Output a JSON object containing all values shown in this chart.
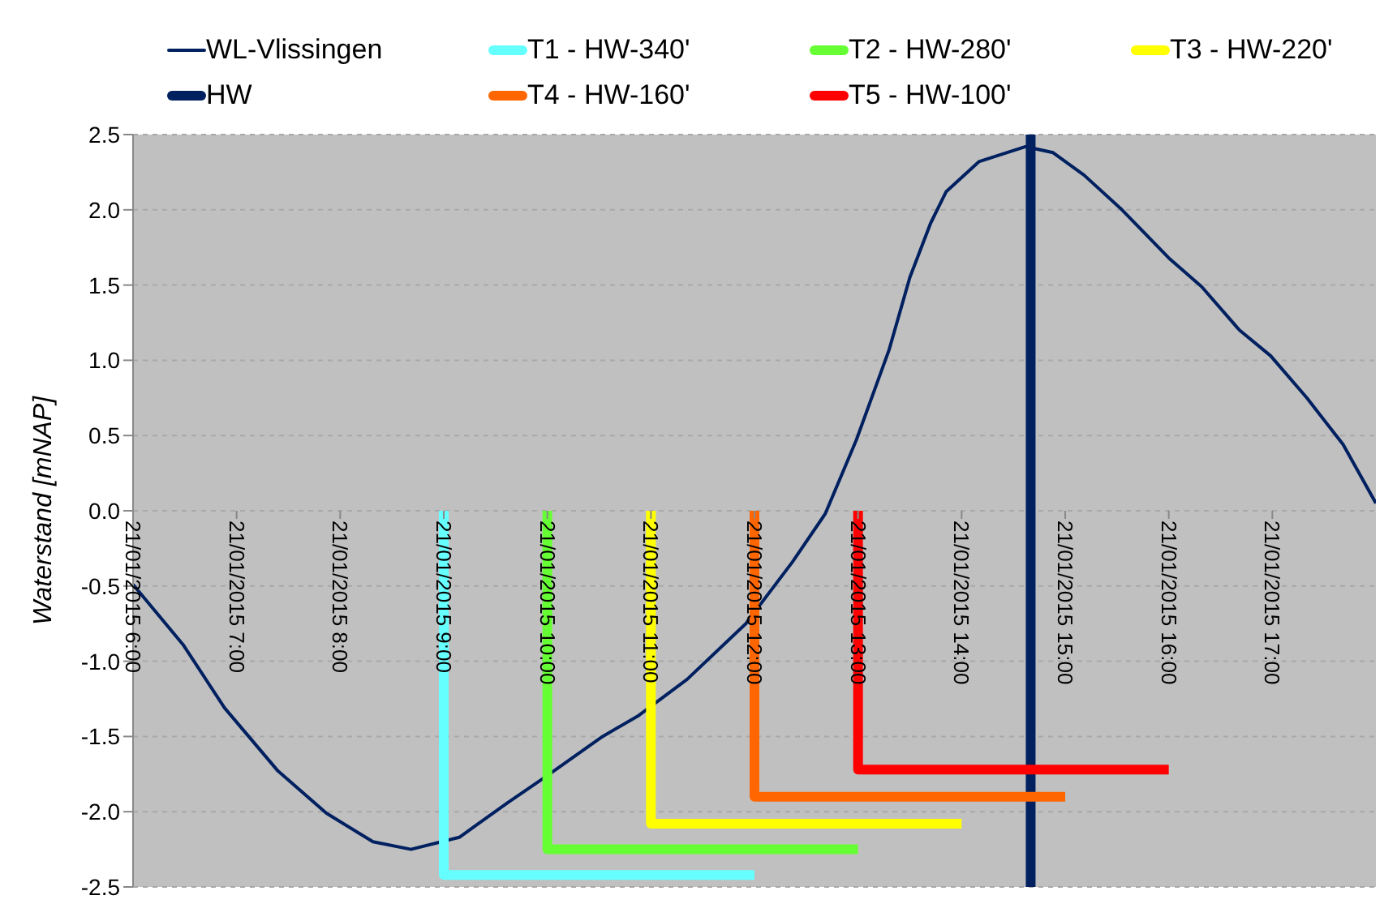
{
  "chart_data": {
    "type": "line",
    "ylabel": "Waterstand [mNAP]",
    "xlim": [
      "2015-01-21T06:00",
      "2015-01-21T18:00"
    ],
    "ylim": [
      -2.5,
      2.5
    ],
    "xticks": [
      {
        "value": "2015-01-21T06:00",
        "label": "21/01/2015 6:00"
      },
      {
        "value": "2015-01-21T07:00",
        "label": "21/01/2015 7:00"
      },
      {
        "value": "2015-01-21T08:00",
        "label": "21/01/2015 8:00"
      },
      {
        "value": "2015-01-21T09:00",
        "label": "21/01/2015 9:00"
      },
      {
        "value": "2015-01-21T10:00",
        "label": "21/01/2015 10:00"
      },
      {
        "value": "2015-01-21T11:00",
        "label": "21/01/2015 11:00"
      },
      {
        "value": "2015-01-21T12:00",
        "label": "21/01/2015 12:00"
      },
      {
        "value": "2015-01-21T13:00",
        "label": "21/01/2015 13:00"
      },
      {
        "value": "2015-01-21T14:00",
        "label": "21/01/2015 14:00"
      },
      {
        "value": "2015-01-21T15:00",
        "label": "21/01/2015 15:00"
      },
      {
        "value": "2015-01-21T16:00",
        "label": "21/01/2015 16:00"
      },
      {
        "value": "2015-01-21T17:00",
        "label": "21/01/2015 17:00"
      }
    ],
    "yticks": [
      -2.5,
      {
        "value": -2,
        "label": "-2.0"
      },
      -1.5,
      {
        "value": -1,
        "label": "-1.0"
      },
      -0.5,
      {
        "value": 0,
        "label": "0.0"
      },
      0.5,
      {
        "value": 1,
        "label": "1.0"
      },
      1.5,
      {
        "value": 2,
        "label": "2.0"
      },
      2.5
    ],
    "grid": "y",
    "legend": "top",
    "marker": "none",
    "series": [
      {
        "name": "WL-Vlissingen",
        "color": "#002060",
        "x": [
          "2015-01-21T06:00",
          "2015-01-21T06:29",
          "2015-01-21T06:53",
          "2015-01-21T07:24",
          "2015-01-21T07:52",
          "2015-01-21T08:19",
          "2015-01-21T08:41",
          "2015-01-21T09:09",
          "2015-01-21T09:37",
          "2015-01-21T10:00",
          "2015-01-21T10:32",
          "2015-01-21T10:53",
          "2015-01-21T11:21",
          "2015-01-21T11:55",
          "2015-01-21T12:22",
          "2015-01-21T12:41",
          "2015-01-21T12:59",
          "2015-01-21T13:18",
          "2015-01-21T13:30",
          "2015-01-21T13:42",
          "2015-01-21T13:51",
          "2015-01-21T14:10",
          "2015-01-21T14:37",
          "2015-01-21T14:53",
          "2015-01-21T15:11",
          "2015-01-21T15:32",
          "2015-01-21T16:00",
          "2015-01-21T16:19",
          "2015-01-21T16:41",
          "2015-01-21T16:59",
          "2015-01-21T17:20",
          "2015-01-21T17:41",
          "2015-01-21T18:00"
        ],
        "values": [
          -0.49,
          -0.89,
          -1.31,
          -1.73,
          -2.01,
          -2.2,
          -2.25,
          -2.17,
          -1.94,
          -1.76,
          -1.5,
          -1.36,
          -1.12,
          -0.75,
          -0.34,
          -0.02,
          0.47,
          1.07,
          1.55,
          1.91,
          2.12,
          2.32,
          2.42,
          2.38,
          2.23,
          2.01,
          1.68,
          1.49,
          1.2,
          1.03,
          0.75,
          0.44,
          0.05
        ]
      },
      {
        "name": "T1 - HW-340'",
        "color": "#66ffff",
        "x": [
          "2015-01-21T09:00",
          "2015-01-21T09:00",
          "2015-01-21T12:00"
        ],
        "values": [
          0,
          -2.42,
          -2.42
        ]
      },
      {
        "name": "T2 - HW-280'",
        "color": "#66ff33",
        "x": [
          "2015-01-21T10:00",
          "2015-01-21T10:00",
          "2015-01-21T13:00"
        ],
        "values": [
          0,
          -2.25,
          -2.25
        ]
      },
      {
        "name": "T3 - HW-220'",
        "color": "#ffff00",
        "x": [
          "2015-01-21T11:00",
          "2015-01-21T11:00",
          "2015-01-21T14:00"
        ],
        "values": [
          0,
          -2.08,
          -2.08
        ]
      },
      {
        "name": "HW",
        "color": "#002060",
        "x": [
          "2015-01-21T14:40",
          "2015-01-21T14:40"
        ],
        "values": [
          -2.5,
          2.5
        ]
      },
      {
        "name": "T4 - HW-160'",
        "color": "#ff6600",
        "x": [
          "2015-01-21T12:00",
          "2015-01-21T12:00",
          "2015-01-21T15:00"
        ],
        "values": [
          0,
          -1.9,
          -1.9
        ]
      },
      {
        "name": "T5 - HW-100'",
        "color": "#ff0000",
        "x": [
          "2015-01-21T13:00",
          "2015-01-21T13:00",
          "2015-01-21T16:00"
        ],
        "values": [
          0,
          -1.72,
          -1.72
        ]
      }
    ]
  }
}
